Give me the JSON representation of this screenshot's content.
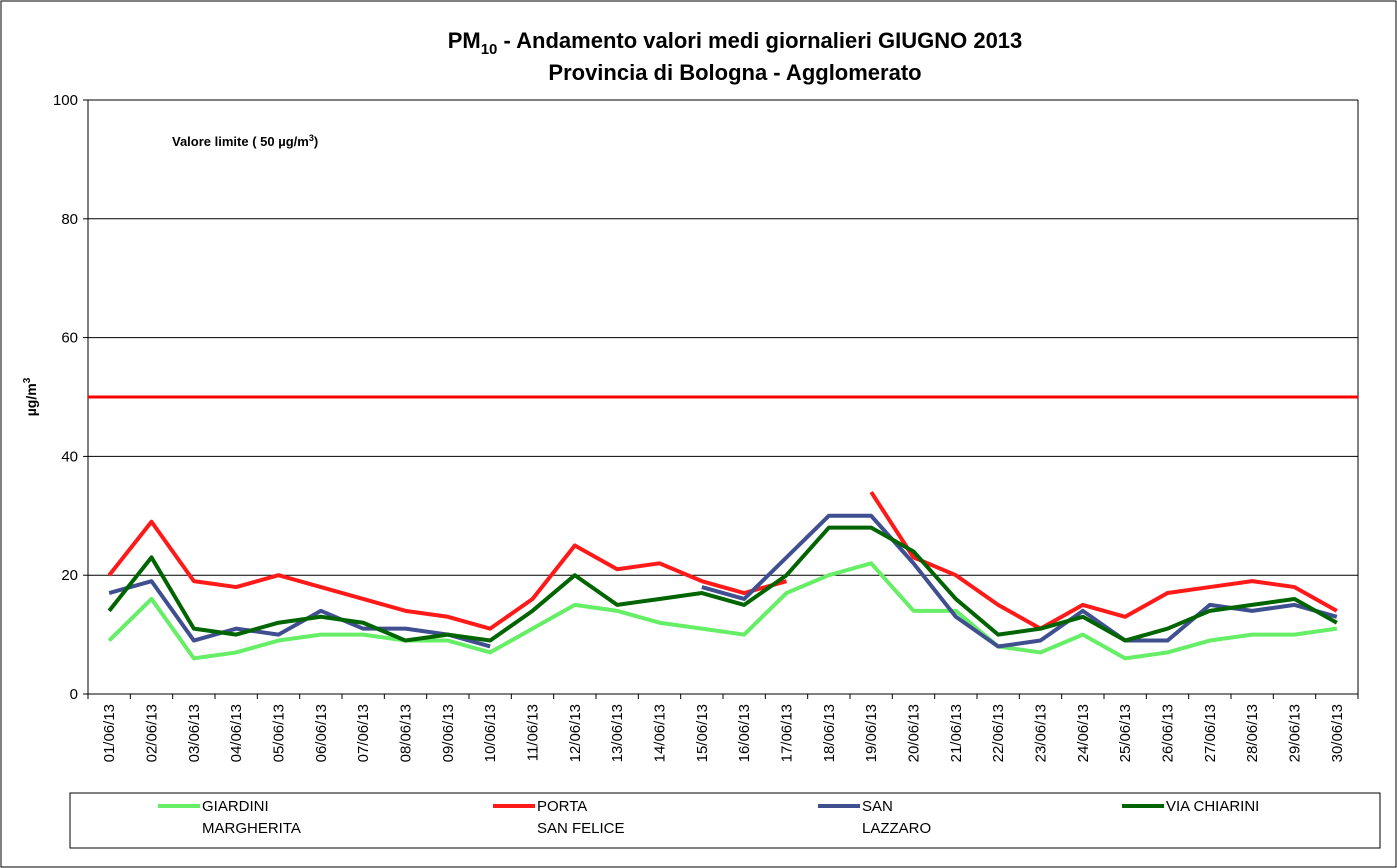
{
  "chart_data": {
    "type": "line",
    "title": {
      "main": "PM",
      "sub": "10",
      "rest": " - Andamento valori medi giornalieri GIUGNO 2013"
    },
    "subtitle": "Provincia di Bologna - Agglomerato",
    "ylabel": {
      "text": "µg/m",
      "sup": "3"
    },
    "annotation": {
      "text": "Valore limite  ( 50 µg/m",
      "sup": "3",
      "end": ")"
    },
    "limit": {
      "value": 50,
      "color": "#ff0000"
    },
    "categories": [
      "01/06/13",
      "02/06/13",
      "03/06/13",
      "04/06/13",
      "05/06/13",
      "06/06/13",
      "07/06/13",
      "08/06/13",
      "09/06/13",
      "10/06/13",
      "11/06/13",
      "12/06/13",
      "13/06/13",
      "14/06/13",
      "15/06/13",
      "16/06/13",
      "17/06/13",
      "18/06/13",
      "19/06/13",
      "20/06/13",
      "21/06/13",
      "22/06/13",
      "23/06/13",
      "24/06/13",
      "25/06/13",
      "26/06/13",
      "27/06/13",
      "28/06/13",
      "29/06/13",
      "30/06/13"
    ],
    "series": [
      {
        "name": "GIARDINI\nMARGHERITA",
        "color": "#66ee66",
        "values": [
          9,
          16,
          6,
          7,
          9,
          10,
          10,
          9,
          9,
          7,
          11,
          15,
          14,
          12,
          11,
          10,
          17,
          20,
          22,
          14,
          14,
          8,
          7,
          10,
          6,
          7,
          9,
          10,
          10,
          11
        ]
      },
      {
        "name": "PORTA\nSAN FELICE",
        "color": "#ff1a1a",
        "values": [
          20,
          29,
          19,
          18,
          20,
          18,
          16,
          14,
          13,
          11,
          16,
          25,
          21,
          22,
          19,
          17,
          19,
          null,
          34,
          23,
          20,
          15,
          11,
          15,
          13,
          17,
          18,
          19,
          18,
          14
        ]
      },
      {
        "name": "SAN\nLAZZARO",
        "color": "#3f4f8f",
        "values": [
          17,
          19,
          9,
          11,
          10,
          14,
          11,
          11,
          10,
          8,
          null,
          null,
          null,
          null,
          18,
          16,
          23,
          30,
          30,
          22,
          13,
          8,
          9,
          14,
          9,
          9,
          15,
          14,
          15,
          13
        ]
      },
      {
        "name": "VIA CHIARINI",
        "color": "#006400",
        "values": [
          14,
          23,
          11,
          10,
          12,
          13,
          12,
          9,
          10,
          9,
          14,
          20,
          15,
          16,
          17,
          15,
          20,
          28,
          28,
          24,
          16,
          10,
          11,
          13,
          9,
          11,
          14,
          15,
          16,
          12
        ]
      }
    ],
    "ylim": [
      0,
      100
    ],
    "yticks": [
      0,
      20,
      40,
      60,
      80,
      100
    ],
    "grid": true
  }
}
